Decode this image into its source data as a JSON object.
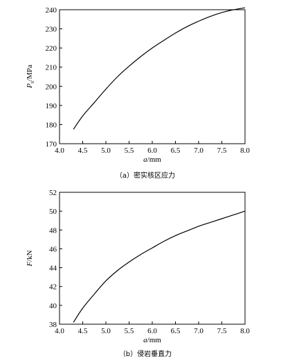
{
  "chart_data": [
    {
      "type": "line",
      "xlabel": "a/mm",
      "ylabel": "P_s/MPa",
      "ylabel_main": "P",
      "ylabel_sub": "s",
      "ylabel_unit": "/MPa",
      "xlabel_main": "a",
      "xlabel_unit": "/mm",
      "caption": "（a）密实核区应力",
      "xlim": [
        4.0,
        8.0
      ],
      "ylim": [
        170,
        240
      ],
      "xticks": [
        "4.0",
        "4.5",
        "5.0",
        "5.5",
        "6.0",
        "6.5",
        "7.0",
        "7.5",
        "8.0"
      ],
      "yticks": [
        "170",
        "180",
        "190",
        "200",
        "210",
        "220",
        "230",
        "240"
      ],
      "grid": false,
      "series": [
        {
          "x": [
            4.3,
            4.5,
            4.75,
            5.0,
            5.25,
            5.5,
            5.75,
            6.0,
            6.25,
            6.5,
            6.75,
            7.0,
            7.25,
            7.5,
            7.75,
            8.0
          ],
          "values": [
            177.5,
            184.5,
            191.5,
            198.5,
            205.0,
            210.5,
            215.5,
            220.0,
            224.0,
            227.8,
            231.2,
            234.0,
            236.5,
            238.5,
            240.0,
            241.5
          ]
        }
      ]
    },
    {
      "type": "line",
      "xlabel": "a/mm",
      "ylabel": "F/kN",
      "ylabel_main": "F",
      "ylabel_sub": "",
      "ylabel_unit": "/kN",
      "xlabel_main": "a",
      "xlabel_unit": "/mm",
      "caption": "（b）侵岩垂直力",
      "xlim": [
        4.0,
        8.0
      ],
      "ylim": [
        38,
        52
      ],
      "xticks": [
        "4.0",
        "4.5",
        "5.0",
        "5.5",
        "6.0",
        "6.5",
        "7.0",
        "7.5",
        "8.0"
      ],
      "yticks": [
        "38",
        "40",
        "42",
        "44",
        "46",
        "48",
        "50",
        "52"
      ],
      "grid": false,
      "series": [
        {
          "x": [
            4.3,
            4.5,
            4.75,
            5.0,
            5.25,
            5.5,
            5.75,
            6.0,
            6.25,
            6.5,
            6.75,
            7.0,
            7.25,
            7.5,
            7.75,
            8.0
          ],
          "values": [
            38.2,
            39.7,
            41.2,
            42.6,
            43.7,
            44.6,
            45.4,
            46.1,
            46.8,
            47.4,
            47.9,
            48.4,
            48.8,
            49.2,
            49.6,
            50.0
          ]
        }
      ]
    }
  ]
}
